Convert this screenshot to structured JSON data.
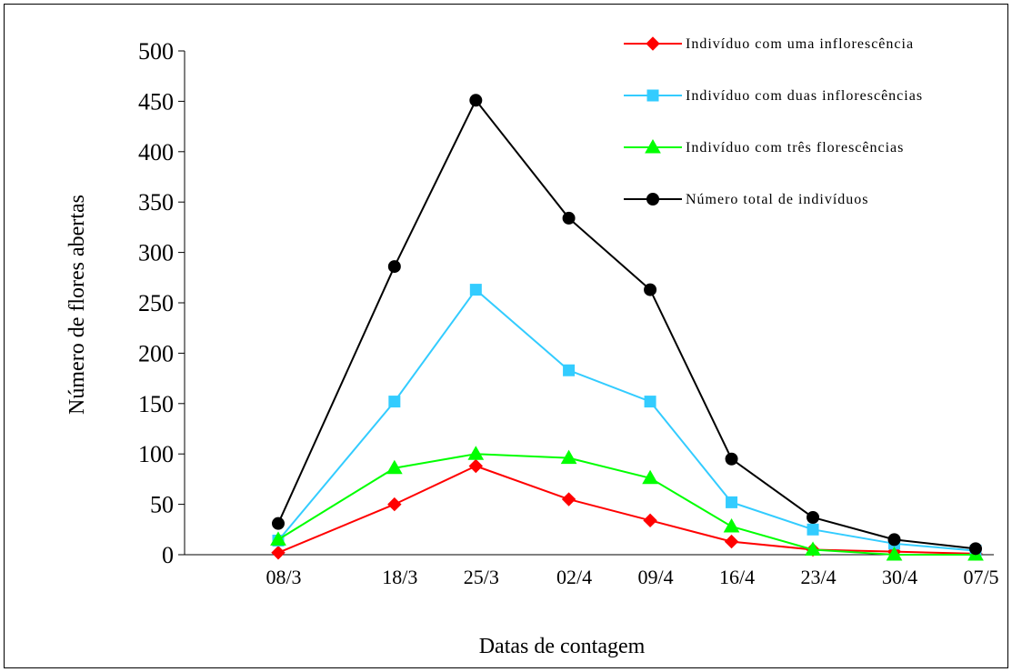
{
  "chart_data": {
    "type": "line",
    "title": "",
    "xlabel": "Datas de contagem",
    "ylabel": "Número de flores abertas",
    "categories": [
      "08/3",
      "18/3",
      "25/3",
      "02/4",
      "09/4",
      "16/4",
      "23/4",
      "30/4",
      "07/5"
    ],
    "x": [
      8,
      18,
      25,
      33,
      40,
      47,
      54,
      61,
      68
    ],
    "ylim": [
      0,
      500
    ],
    "yticks": [
      0,
      50,
      100,
      150,
      200,
      250,
      300,
      350,
      400,
      450,
      500
    ],
    "grid": false,
    "legend_position": "top-right",
    "series": [
      {
        "name": "Indivíduo com uma inflorescência",
        "color": "#ff0000",
        "marker": "diamond",
        "values": [
          2,
          50,
          88,
          55,
          34,
          13,
          5,
          3,
          1
        ]
      },
      {
        "name": "Indivíduo com duas inflorescências",
        "color": "#33ccff",
        "marker": "square",
        "values": [
          14,
          152,
          263,
          183,
          152,
          52,
          25,
          11,
          4
        ]
      },
      {
        "name": "Indivíduo com três florescências",
        "color": "#00ff00",
        "marker": "triangle",
        "values": [
          15,
          86,
          100,
          96,
          76,
          28,
          5,
          0,
          0
        ]
      },
      {
        "name": "Número total de indivíduos",
        "color": "#000000",
        "marker": "circle",
        "values": [
          31,
          286,
          451,
          334,
          263,
          95,
          37,
          15,
          6
        ]
      }
    ]
  }
}
